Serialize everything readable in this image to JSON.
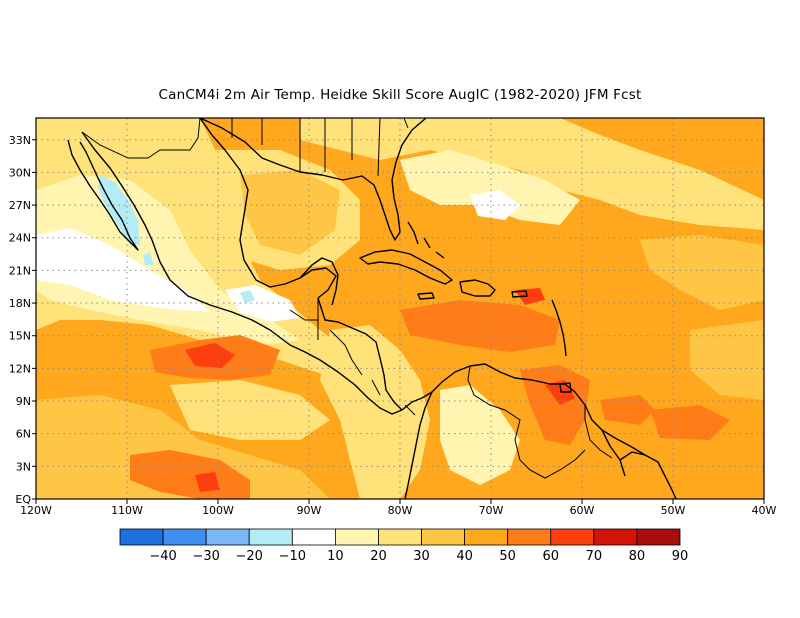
{
  "title": "CanCM4i  2m Air Temp. Heidke Skill Score AugIC (1982-2020) JFM Fcst",
  "map": {
    "lon_range": [
      -120,
      -40
    ],
    "lat_range": [
      0,
      35
    ],
    "lon_labels": [
      "120W",
      "110W",
      "100W",
      "90W",
      "80W",
      "70W",
      "60W",
      "50W",
      "40W"
    ],
    "lat_labels": [
      "EQ",
      "3N",
      "6N",
      "9N",
      "12N",
      "15N",
      "18N",
      "21N",
      "24N",
      "27N",
      "30N",
      "33N"
    ],
    "gridlines": true
  },
  "colorbar": {
    "labels": [
      "-40",
      "-30",
      "-20",
      "-10",
      "10",
      "20",
      "30",
      "40",
      "50",
      "60",
      "70",
      "80",
      "90"
    ],
    "colors": [
      "#1e6fe0",
      "#3f8ff0",
      "#78b8f8",
      "#b4ecf6",
      "#ffffff",
      "#fff5b0",
      "#ffe37a",
      "#ffc646",
      "#ffa81e",
      "#ff7d18",
      "#ff3e0e",
      "#d41406",
      "#a80c0c"
    ]
  },
  "palette": {
    "base": "#ffa81e",
    "light_yellow": "#fff5b0",
    "yellow": "#ffe37a",
    "gold": "#ffc646",
    "orange_red": "#ff7d18",
    "red": "#ff3e0e",
    "light_blue": "#b4ecf6",
    "white": "#ffffff",
    "coast": "#000000"
  }
}
